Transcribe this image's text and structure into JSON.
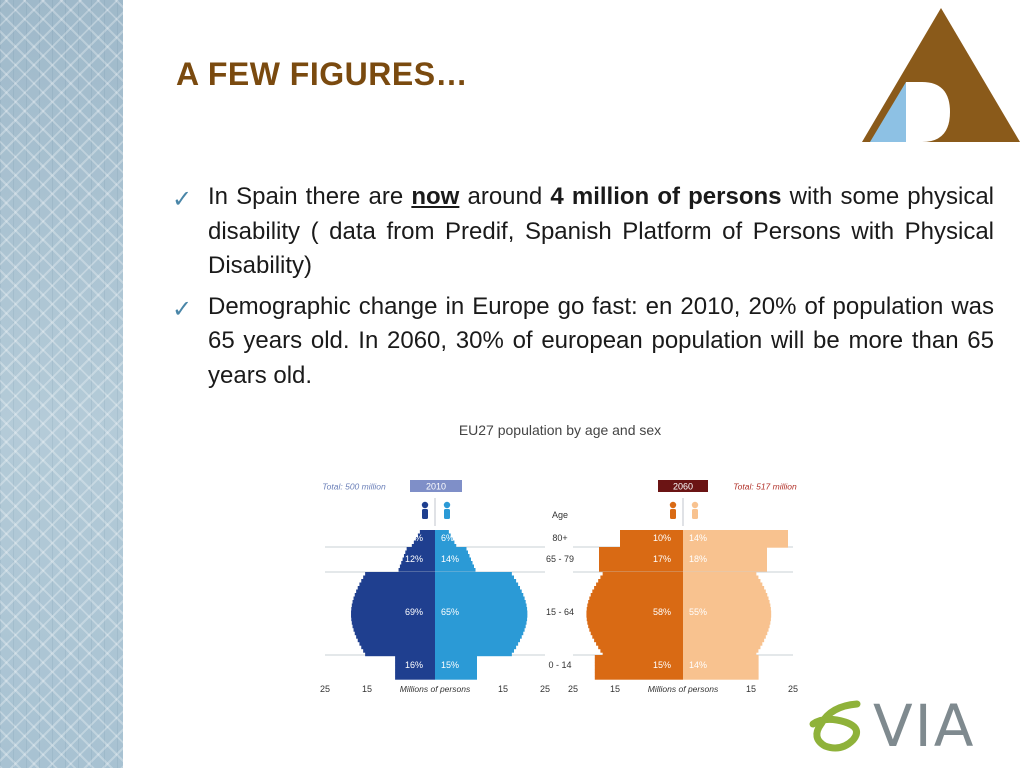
{
  "slide": {
    "title": "A FEW FIGURES…",
    "bullets": [
      {
        "t1": "In Spain there are ",
        "now": "now",
        "t2": " around ",
        "four": "4",
        "t3": "  ",
        "million": "million of persons",
        "t4": " with some physical disability ( data from Predif, Spanish Platform of  Persons with Physical Disability)"
      },
      {
        "text": "Demographic change in Europe go fast: en 2010, 20% of population was 65 years old. In 2060, 30% of european population will be more than 65 years old."
      }
    ],
    "check_icon": "check-mark-icon",
    "logos": {
      "top": "triangle-logo",
      "bottom": "evia-logo",
      "bottom_text": "eVIA"
    }
  },
  "chart_data": {
    "type": "bar",
    "title": "EU27 population by age and sex",
    "age_header": "Age",
    "categories": [
      "80+",
      "65 - 79",
      "15 - 64",
      "0 - 14"
    ],
    "xlabel": "Millions of persons",
    "x_ticks": [
      "25",
      "15",
      "15",
      "25"
    ],
    "panels": [
      {
        "year": "2010",
        "total": "Total: 500 million",
        "men_pct": [
          "5%",
          "12%",
          "69%",
          "16%"
        ],
        "women_pct": [
          "6%",
          "14%",
          "65%",
          "15%"
        ],
        "colors": {
          "men": "#1f3f8f",
          "women": "#2b9ad6",
          "year_badge": "#7f8fc8"
        }
      },
      {
        "year": "2060",
        "total": "Total: 517 million",
        "men_pct": [
          "10%",
          "17%",
          "58%",
          "15%"
        ],
        "women_pct": [
          "14%",
          "18%",
          "55%",
          "14%"
        ],
        "colors": {
          "men": "#d96a14",
          "women": "#f8c28f",
          "year_badge": "#6b1414"
        }
      }
    ]
  }
}
